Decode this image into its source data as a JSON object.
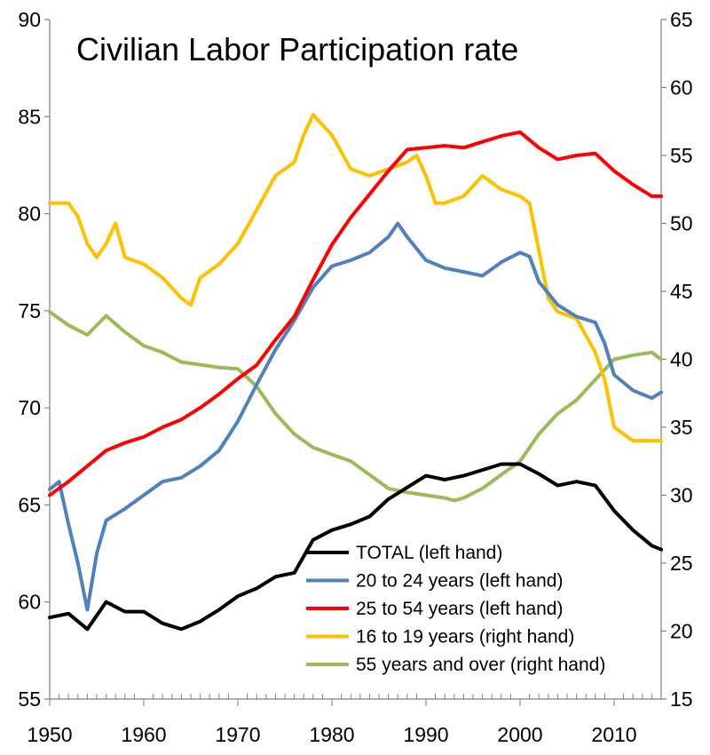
{
  "chart_data": {
    "type": "line",
    "title": "Civilian Labor Participation rate",
    "xlabel": "",
    "ylabel": "",
    "y2label": "",
    "xlim": [
      1950,
      2015
    ],
    "ylim": [
      55,
      90
    ],
    "y2lim": [
      15,
      65
    ],
    "x_ticks": [
      1950,
      1960,
      1970,
      1980,
      1990,
      2000,
      2010
    ],
    "y_ticks": [
      55,
      60,
      65,
      70,
      75,
      80,
      85,
      90
    ],
    "y2_ticks": [
      15,
      20,
      25,
      30,
      35,
      40,
      45,
      50,
      55,
      60,
      65
    ],
    "legend_position": "bottom-right",
    "grid": false,
    "series": [
      {
        "name": "TOTAL (left hand)",
        "axis": "left",
        "color": "#000000",
        "x": [
          1950,
          1952,
          1954,
          1956,
          1958,
          1960,
          1962,
          1964,
          1966,
          1968,
          1970,
          1972,
          1974,
          1976,
          1978,
          1980,
          1982,
          1984,
          1986,
          1988,
          1990,
          1992,
          1994,
          1996,
          1998,
          2000,
          2002,
          2004,
          2006,
          2008,
          2010,
          2012,
          2014,
          2015
        ],
        "y": [
          59.2,
          59.4,
          58.6,
          60.0,
          59.5,
          59.5,
          58.9,
          58.6,
          59.0,
          59.6,
          60.3,
          60.7,
          61.3,
          61.5,
          63.2,
          63.7,
          64.0,
          64.4,
          65.3,
          65.9,
          66.5,
          66.3,
          66.5,
          66.8,
          67.1,
          67.1,
          66.6,
          66.0,
          66.2,
          66.0,
          64.7,
          63.7,
          62.9,
          62.7
        ]
      },
      {
        "name": "20 to 24 years (left hand)",
        "axis": "left",
        "color": "#4F81BD",
        "x": [
          1950,
          1951,
          1952,
          1953,
          1954,
          1955,
          1956,
          1958,
          1960,
          1962,
          1964,
          1966,
          1968,
          1970,
          1972,
          1974,
          1976,
          1978,
          1980,
          1982,
          1984,
          1986,
          1987,
          1988,
          1990,
          1992,
          1994,
          1996,
          1998,
          2000,
          2001,
          2002,
          2004,
          2006,
          2008,
          2009,
          2010,
          2012,
          2014,
          2015
        ],
        "y": [
          65.8,
          66.2,
          64.0,
          62.0,
          59.6,
          62.5,
          64.2,
          64.8,
          65.5,
          66.2,
          66.4,
          67.0,
          67.8,
          69.3,
          71.2,
          73.0,
          74.5,
          76.2,
          77.3,
          77.6,
          78.0,
          78.8,
          79.5,
          78.8,
          77.6,
          77.2,
          77.0,
          76.8,
          77.5,
          78.0,
          77.8,
          76.5,
          75.3,
          74.7,
          74.4,
          73.3,
          71.7,
          70.9,
          70.5,
          70.8
        ]
      },
      {
        "name": "25 to 54 years (left hand)",
        "axis": "left",
        "color": "#FF0000",
        "x": [
          1950,
          1952,
          1954,
          1956,
          1958,
          1960,
          1962,
          1964,
          1966,
          1968,
          1970,
          1972,
          1974,
          1976,
          1978,
          1980,
          1982,
          1984,
          1986,
          1988,
          1990,
          1992,
          1994,
          1996,
          1998,
          2000,
          2002,
          2004,
          2006,
          2008,
          2010,
          2012,
          2014,
          2015
        ],
        "y": [
          65.5,
          66.2,
          67.0,
          67.8,
          68.2,
          68.5,
          69.0,
          69.4,
          70.0,
          70.7,
          71.5,
          72.2,
          73.5,
          74.7,
          76.6,
          78.4,
          79.8,
          81.0,
          82.2,
          83.3,
          83.4,
          83.5,
          83.4,
          83.7,
          84.0,
          84.2,
          83.4,
          82.8,
          83.0,
          83.1,
          82.2,
          81.5,
          80.9,
          80.9
        ]
      },
      {
        "name": "16 to 19 years (right hand)",
        "axis": "right",
        "color": "#FFC000",
        "x": [
          1950,
          1952,
          1953,
          1954,
          1955,
          1956,
          1957,
          1958,
          1960,
          1962,
          1964,
          1965,
          1966,
          1968,
          1970,
          1972,
          1974,
          1976,
          1977,
          1978,
          1980,
          1982,
          1984,
          1986,
          1988,
          1989,
          1990,
          1991,
          1992,
          1994,
          1996,
          1998,
          2000,
          2001,
          2002,
          2003,
          2004,
          2006,
          2008,
          2009,
          2010,
          2012,
          2014,
          2015
        ],
        "y": [
          51.5,
          51.5,
          50.5,
          48.5,
          47.5,
          48.5,
          50.0,
          47.5,
          47.0,
          46.0,
          44.5,
          44.0,
          46.0,
          47.0,
          48.5,
          51.0,
          53.5,
          54.5,
          56.5,
          58.0,
          56.5,
          54.0,
          53.5,
          54.0,
          54.5,
          55.0,
          53.5,
          51.5,
          51.5,
          52.0,
          53.5,
          52.5,
          52.0,
          51.5,
          48.0,
          44.5,
          43.5,
          43.0,
          40.5,
          38.5,
          35.0,
          34.0,
          34.0,
          34.0
        ]
      },
      {
        "name": "55 years and over (right hand)",
        "axis": "right",
        "color": "#9BBB59",
        "x": [
          1950,
          1952,
          1954,
          1956,
          1958,
          1960,
          1962,
          1964,
          1966,
          1968,
          1970,
          1972,
          1974,
          1976,
          1978,
          1980,
          1982,
          1984,
          1986,
          1988,
          1990,
          1992,
          1993,
          1994,
          1996,
          1998,
          2000,
          2002,
          2004,
          2006,
          2008,
          2010,
          2012,
          2014,
          2015
        ],
        "y": [
          43.5,
          42.5,
          41.8,
          43.2,
          42.0,
          41.0,
          40.5,
          39.8,
          39.6,
          39.4,
          39.3,
          38.0,
          36.0,
          34.5,
          33.5,
          33.0,
          32.5,
          31.5,
          30.5,
          30.2,
          30.0,
          29.8,
          29.6,
          29.8,
          30.5,
          31.5,
          32.5,
          34.5,
          36.0,
          37.0,
          38.5,
          40.0,
          40.3,
          40.5,
          40.0
        ]
      }
    ]
  }
}
